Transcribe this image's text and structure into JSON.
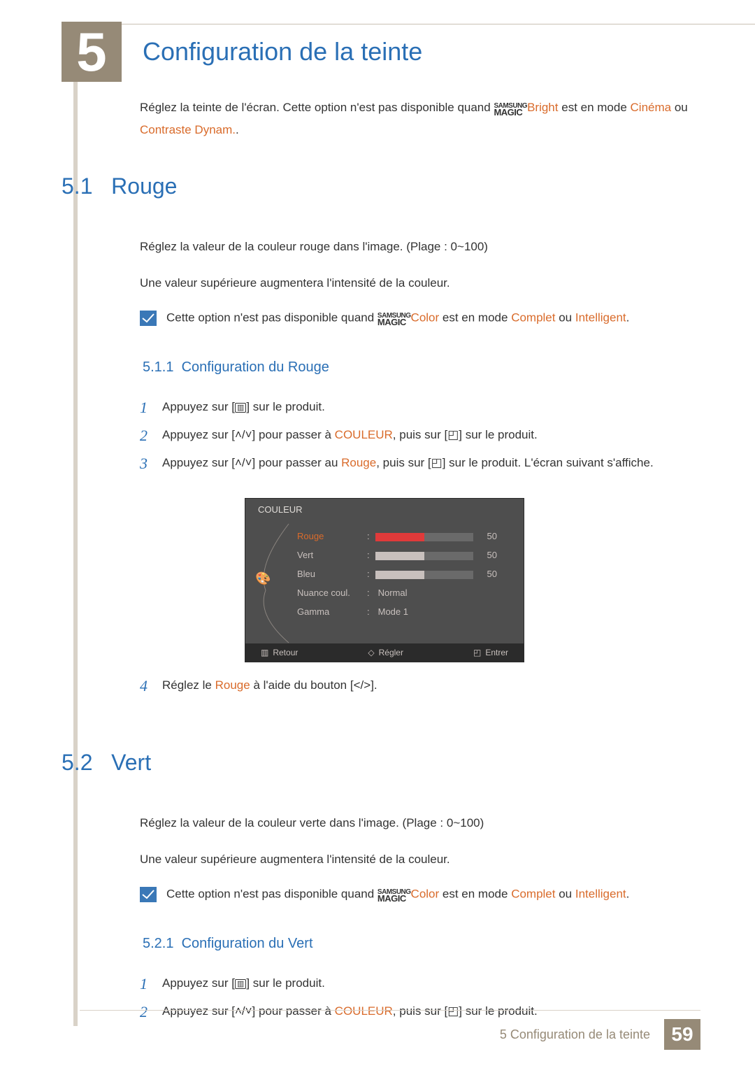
{
  "chapter_number": "5",
  "page_title": "Configuration de la teinte",
  "intro": {
    "part1": "Réglez la teinte de l'écran. Cette option n'est pas disponible quand ",
    "magic_brand": "SAMSUNG",
    "magic_word": "MAGIC",
    "magic_suffix": "Bright",
    "part2": " est en mode ",
    "link1": "Cinéma",
    "or": " ou ",
    "link2": "Contraste Dynam.",
    "end": "."
  },
  "s51": {
    "num": "5.1",
    "title": "Rouge",
    "p1": "Réglez la valeur de la couleur rouge dans l'image. (Plage : 0~100)",
    "p2": "Une valeur supérieure augmentera l'intensité de la couleur.",
    "note_pre": "Cette option n'est pas disponible quand ",
    "note_suffix": "Color",
    "note_mid": " est en mode ",
    "note_l1": "Complet",
    "note_or": " ou ",
    "note_l2": "Intelligent",
    "note_end": "."
  },
  "s511": {
    "num": "5.1.1",
    "title": "Configuration du Rouge",
    "step1_pre": "Appuyez sur [",
    "step1_post": "] sur le produit.",
    "step2_pre": "Appuyez sur [",
    "step2_mid": "] pour passer à ",
    "step2_link": "COULEUR",
    "step2_mid2": ", puis sur [",
    "step2_post": "] sur le produit.",
    "step3_pre": "Appuyez sur [",
    "step3_mid": "] pour passer au ",
    "step3_link": "Rouge",
    "step3_mid2": ", puis sur [",
    "step3_post": "] sur le produit. L'écran suivant s'affiche.",
    "step4_pre": "Réglez le ",
    "step4_link": "Rouge",
    "step4_mid": " à l'aide du bouton [",
    "step4_post": "]."
  },
  "osd": {
    "title": "COULEUR",
    "rows": [
      {
        "label": "Rouge",
        "value": "50",
        "fill_pct": 50,
        "selected": true,
        "is_bar": true
      },
      {
        "label": "Vert",
        "value": "50",
        "fill_pct": 50,
        "selected": false,
        "is_bar": true
      },
      {
        "label": "Bleu",
        "value": "50",
        "fill_pct": 50,
        "selected": false,
        "is_bar": true
      },
      {
        "label": "Nuance coul.",
        "text": "Normal",
        "is_bar": false
      },
      {
        "label": "Gamma",
        "text": "Mode 1",
        "is_bar": false
      }
    ],
    "footer": {
      "back": "Retour",
      "adjust": "Régler",
      "enter": "Entrer"
    },
    "colors": {
      "bg": "#4e4e4e",
      "selected_text": "#d96b2b",
      "selected_fill": "#e03a3a",
      "bar_bg": "#6a6a6a",
      "bar_fill": "#c8c0bd",
      "text": "#c8c0bd",
      "footer_bg": "#2b2b2b"
    }
  },
  "s52": {
    "num": "5.2",
    "title": "Vert",
    "p1": "Réglez la valeur de la couleur verte dans l'image. (Plage : 0~100)",
    "p2": "Une valeur supérieure augmentera l'intensité de la couleur.",
    "note_pre": "Cette option n'est pas disponible quand ",
    "note_suffix": "Color",
    "note_mid": " est en mode ",
    "note_l1": "Complet",
    "note_or": " ou ",
    "note_l2": "Intelligent",
    "note_end": "."
  },
  "s521": {
    "num": "5.2.1",
    "title": "Configuration du Vert",
    "step1_pre": "Appuyez sur [",
    "step1_post": "] sur le produit.",
    "step2_pre": "Appuyez sur [",
    "step2_mid": "] pour passer à ",
    "step2_link": "COULEUR",
    "step2_mid2": ", puis sur [",
    "step2_post": "] sur le produit."
  },
  "footer": {
    "label": "5 Configuration de la teinte",
    "page": "59"
  },
  "colors": {
    "blue": "#2a6fb5",
    "orange_link": "#d96b2b",
    "accent_tan": "#968a77",
    "rule": "#d9d2c8"
  }
}
